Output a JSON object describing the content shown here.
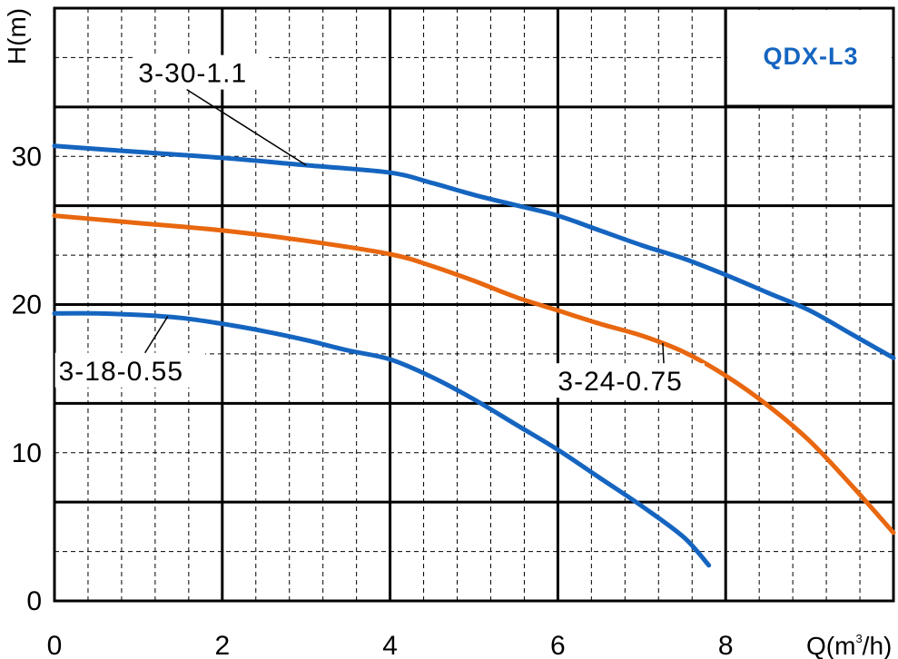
{
  "chart_data": {
    "type": "line",
    "title": "QDX-L3",
    "xlabel": "Q(m³/h)",
    "xlabel_parts": {
      "main": "Q(m",
      "sup": "3",
      "tail": "/h)"
    },
    "ylabel": "H(m)",
    "xlim": [
      0,
      10
    ],
    "ylim": [
      0,
      40
    ],
    "x_ticks": [
      "0",
      "2",
      "4",
      "6",
      "8"
    ],
    "y_ticks": [
      "0",
      "10",
      "20",
      "30"
    ],
    "grid": true,
    "legend": "none",
    "colors": {
      "blue": "#1565c0",
      "orange": "#e8670f",
      "grid": "#000000"
    },
    "series": [
      {
        "name": "3-30-1.1",
        "color": "#1565c0",
        "x": [
          0,
          1,
          2,
          3,
          4,
          4.5,
          5,
          5.5,
          6,
          6.5,
          7,
          7.5,
          8,
          8.5,
          9,
          9.5,
          10
        ],
        "y": [
          30.7,
          30.3,
          29.9,
          29.4,
          28.9,
          28.2,
          27.4,
          26.7,
          26.0,
          25.0,
          24.0,
          23.1,
          22.0,
          20.8,
          19.6,
          18.0,
          16.4
        ]
      },
      {
        "name": "3-24-0.75",
        "color": "#e8670f",
        "x": [
          0,
          1,
          2,
          3,
          4,
          4.5,
          5,
          5.5,
          6,
          6.5,
          7,
          7.5,
          8,
          8.5,
          9,
          9.5,
          10
        ],
        "y": [
          26.0,
          25.5,
          25.0,
          24.3,
          23.4,
          22.6,
          21.6,
          20.5,
          19.6,
          18.7,
          17.9,
          16.8,
          15.2,
          13.2,
          10.8,
          7.8,
          4.6
        ]
      },
      {
        "name": "3-18-0.55",
        "color": "#1565c0",
        "x": [
          0,
          0.5,
          1,
          1.5,
          2,
          2.5,
          3,
          3.5,
          4,
          4.5,
          5,
          5.5,
          6,
          6.5,
          7,
          7.5,
          7.8
        ],
        "y": [
          19.4,
          19.4,
          19.3,
          19.1,
          18.7,
          18.2,
          17.6,
          16.9,
          16.3,
          15.1,
          13.6,
          11.9,
          10.2,
          8.3,
          6.4,
          4.3,
          2.4
        ]
      }
    ],
    "annotations": [
      {
        "text": "3-30-1.1",
        "series": "3-30-1.1",
        "x": 3.0,
        "y": 29.4,
        "label_x": 1.0,
        "label_y": 35.0
      },
      {
        "text": "3-24-0.75",
        "series": "3-24-0.75",
        "x": 7.25,
        "y": 17.4,
        "label_x": 6.0,
        "label_y": 14.2
      },
      {
        "text": "3-18-0.55",
        "series": "3-18-0.55",
        "x": 1.35,
        "y": 19.2,
        "label_x": 0.05,
        "label_y": 14.9
      }
    ]
  }
}
